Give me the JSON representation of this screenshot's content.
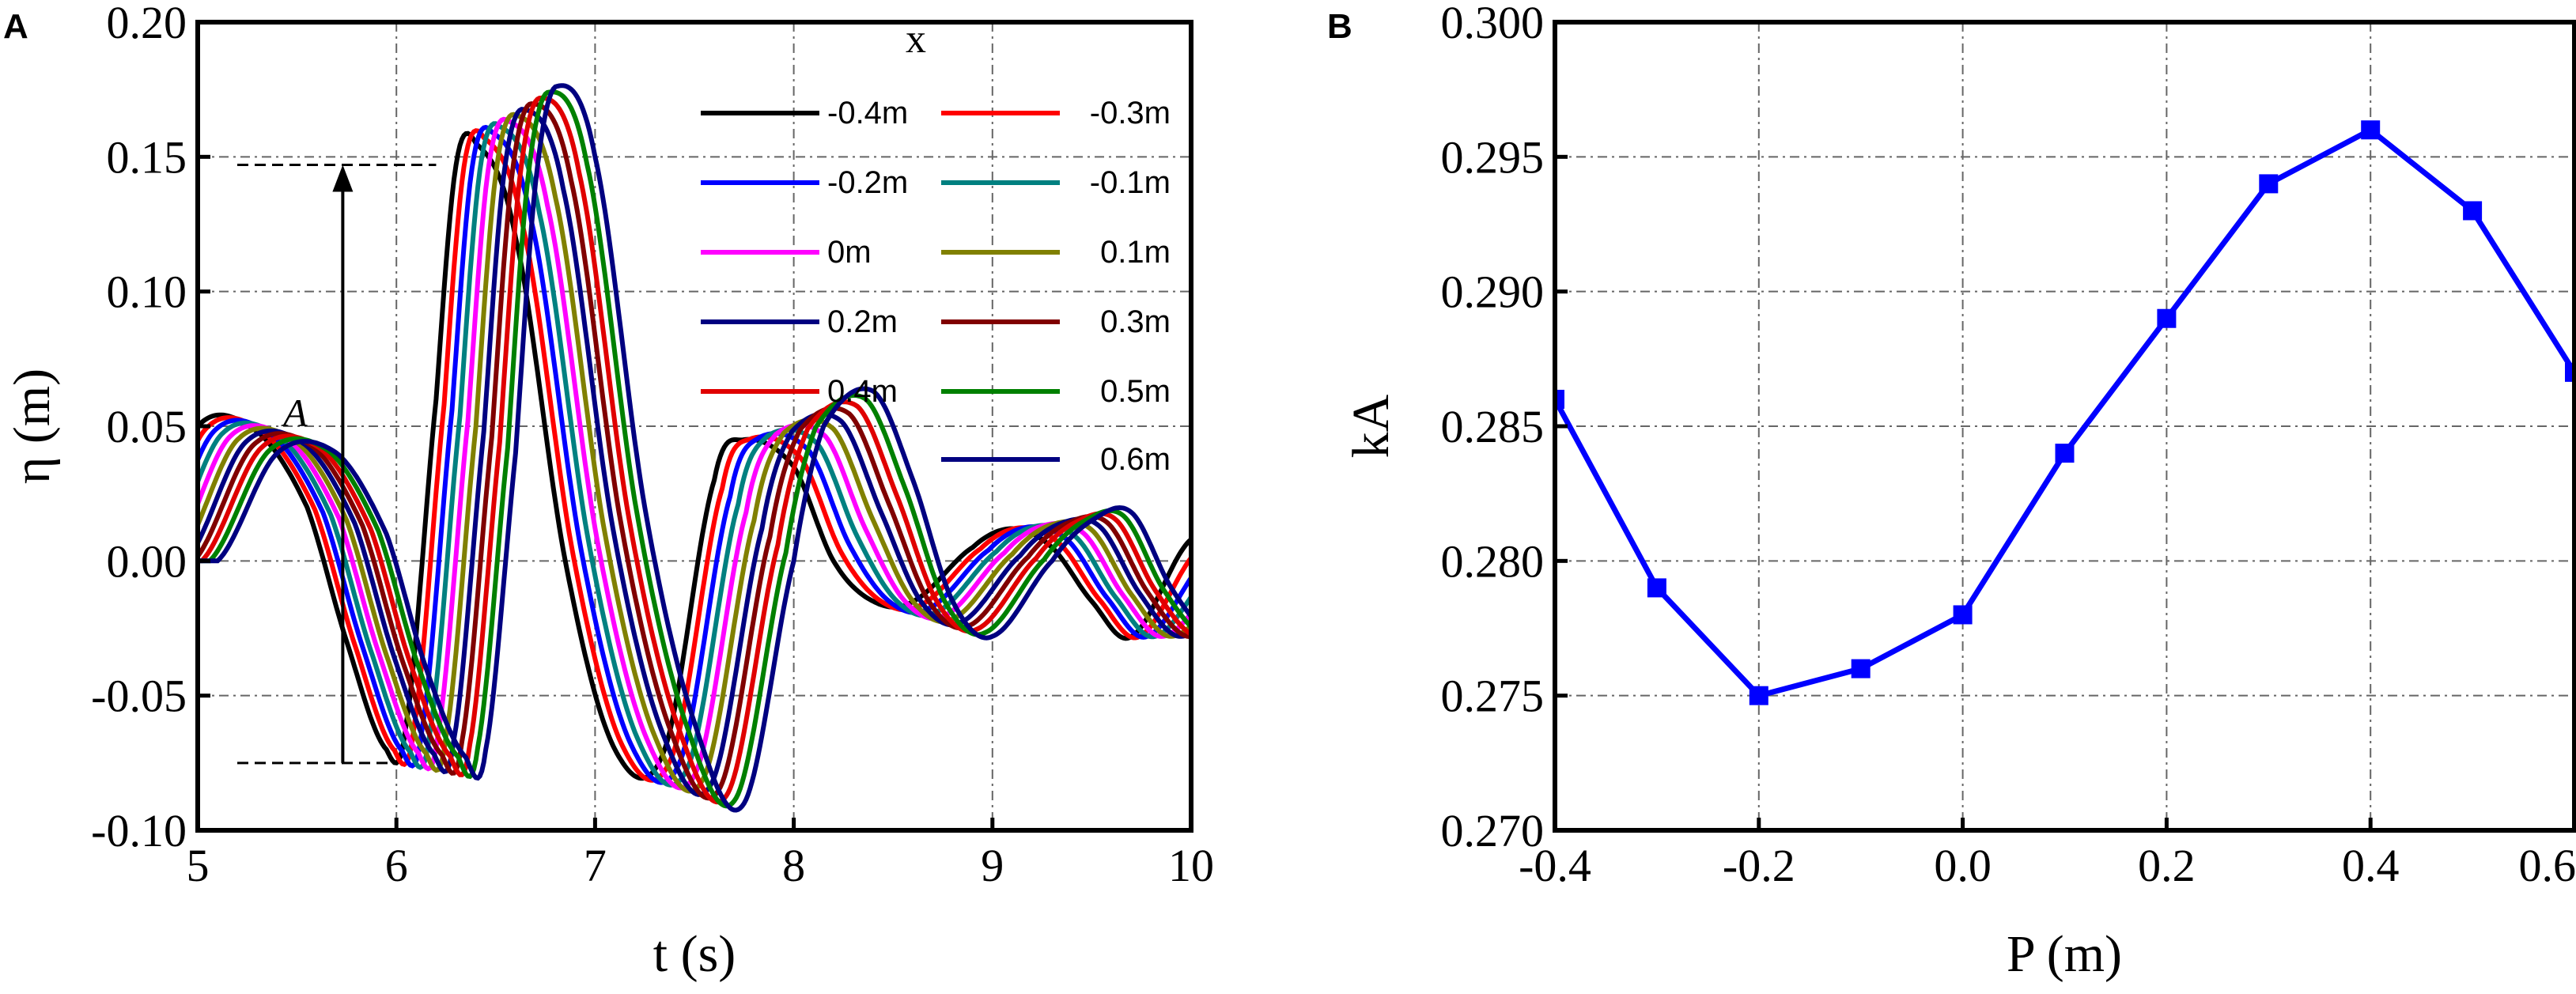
{
  "chart_data": [
    {
      "panel": "A",
      "type": "line",
      "xlabel": "t (s)",
      "ylabel": "η (m)",
      "xlim": [
        5,
        10
      ],
      "ylim": [
        -0.1,
        0.2
      ],
      "xticks": [
        "5",
        "6",
        "7",
        "8",
        "9",
        "10"
      ],
      "xtick_values": [
        5,
        6,
        7,
        8,
        9,
        10
      ],
      "yticks": [
        "-0.10",
        "-0.05",
        "0.00",
        "0.05",
        "0.10",
        "0.15",
        "0.20"
      ],
      "ytick_values": [
        -0.1,
        -0.05,
        0.0,
        0.05,
        0.1,
        0.15,
        0.2
      ],
      "grid": true,
      "legend_title": "x",
      "legend_position": "top-right",
      "annotation": {
        "label": "A",
        "top": 0.147,
        "bottom": -0.075,
        "t": 5.73
      },
      "base_waveform": {
        "t": [
          4.7,
          5.0,
          5.3,
          5.55,
          5.75,
          5.95,
          6.05,
          6.2,
          6.3,
          6.4,
          6.6,
          6.85,
          7.1,
          7.35,
          7.6,
          7.75,
          8.0,
          8.2,
          8.4,
          8.6,
          8.9,
          9.1,
          9.3,
          9.5,
          9.7,
          10.0
        ],
        "eta_initial": [
          0.0,
          0.05,
          0.048,
          0.02,
          -0.03,
          -0.07,
          -0.06,
          0.06,
          0.147,
          0.155,
          0.12,
          0.0,
          -0.07,
          -0.07,
          0.03,
          0.045,
          0.035,
          0.0,
          -0.015,
          -0.015,
          0.005,
          0.012,
          0.005,
          -0.015,
          -0.028,
          0.008
        ],
        "eta_final": [
          0.0,
          0.04,
          0.04,
          0.01,
          -0.04,
          -0.073,
          -0.07,
          0.04,
          0.14,
          0.176,
          0.15,
          0.02,
          -0.06,
          -0.09,
          0.0,
          0.05,
          0.063,
          0.03,
          -0.015,
          -0.028,
          0.0,
          0.015,
          0.018,
          -0.01,
          -0.028,
          -0.03
        ]
      },
      "series": [
        {
          "name": "-0.4m",
          "color": "#000000",
          "shift": 0.0,
          "peak": 0.147
        },
        {
          "name": "-0.3m",
          "color": "#ff0000",
          "shift": 0.04,
          "peak": 0.15
        },
        {
          "name": "-0.2m",
          "color": "#0000ff",
          "shift": 0.08,
          "peak": 0.155
        },
        {
          "name": "-0.1m",
          "color": "#008080",
          "shift": 0.12,
          "peak": 0.158
        },
        {
          "name": "0m",
          "color": "#ff00ff",
          "shift": 0.16,
          "peak": 0.163
        },
        {
          "name": "0.1m",
          "color": "#808000",
          "shift": 0.2,
          "peak": 0.17
        },
        {
          "name": "0.2m",
          "color": "#000080",
          "shift": 0.24,
          "peak": 0.17
        },
        {
          "name": "0.3m",
          "color": "#800000",
          "shift": 0.28,
          "peak": 0.176
        },
        {
          "name": "0.4m",
          "color": "#e00000",
          "shift": 0.32,
          "peak": 0.174
        },
        {
          "name": "0.5m",
          "color": "#008000",
          "shift": 0.36,
          "peak": 0.175
        },
        {
          "name": "0.6m",
          "color": "#000080",
          "shift": 0.4,
          "peak": 0.171
        }
      ]
    },
    {
      "panel": "B",
      "type": "line",
      "xlabel": "P (m)",
      "ylabel": "kA",
      "xlim": [
        -0.4,
        0.6
      ],
      "ylim": [
        0.27,
        0.3
      ],
      "xticks": [
        "-0.4",
        "-0.2",
        "0.0",
        "0.2",
        "0.4",
        "0.6"
      ],
      "xtick_values": [
        -0.4,
        -0.2,
        0.0,
        0.2,
        0.4,
        0.6
      ],
      "yticks": [
        "0.270",
        "0.275",
        "0.280",
        "0.285",
        "0.290",
        "0.295",
        "0.300"
      ],
      "ytick_values": [
        0.27,
        0.275,
        0.28,
        0.285,
        0.29,
        0.295,
        0.3
      ],
      "grid": true,
      "series": [
        {
          "name": "kA",
          "color": "#0000ff",
          "marker": "square",
          "x": [
            -0.4,
            -0.3,
            -0.2,
            -0.1,
            0.0,
            0.1,
            0.2,
            0.3,
            0.4,
            0.5,
            0.6
          ],
          "y": [
            0.286,
            0.279,
            0.275,
            0.276,
            0.278,
            0.284,
            0.289,
            0.294,
            0.296,
            0.293,
            0.287
          ]
        }
      ]
    }
  ],
  "panel_labels": {
    "a": "A",
    "b": "B"
  }
}
